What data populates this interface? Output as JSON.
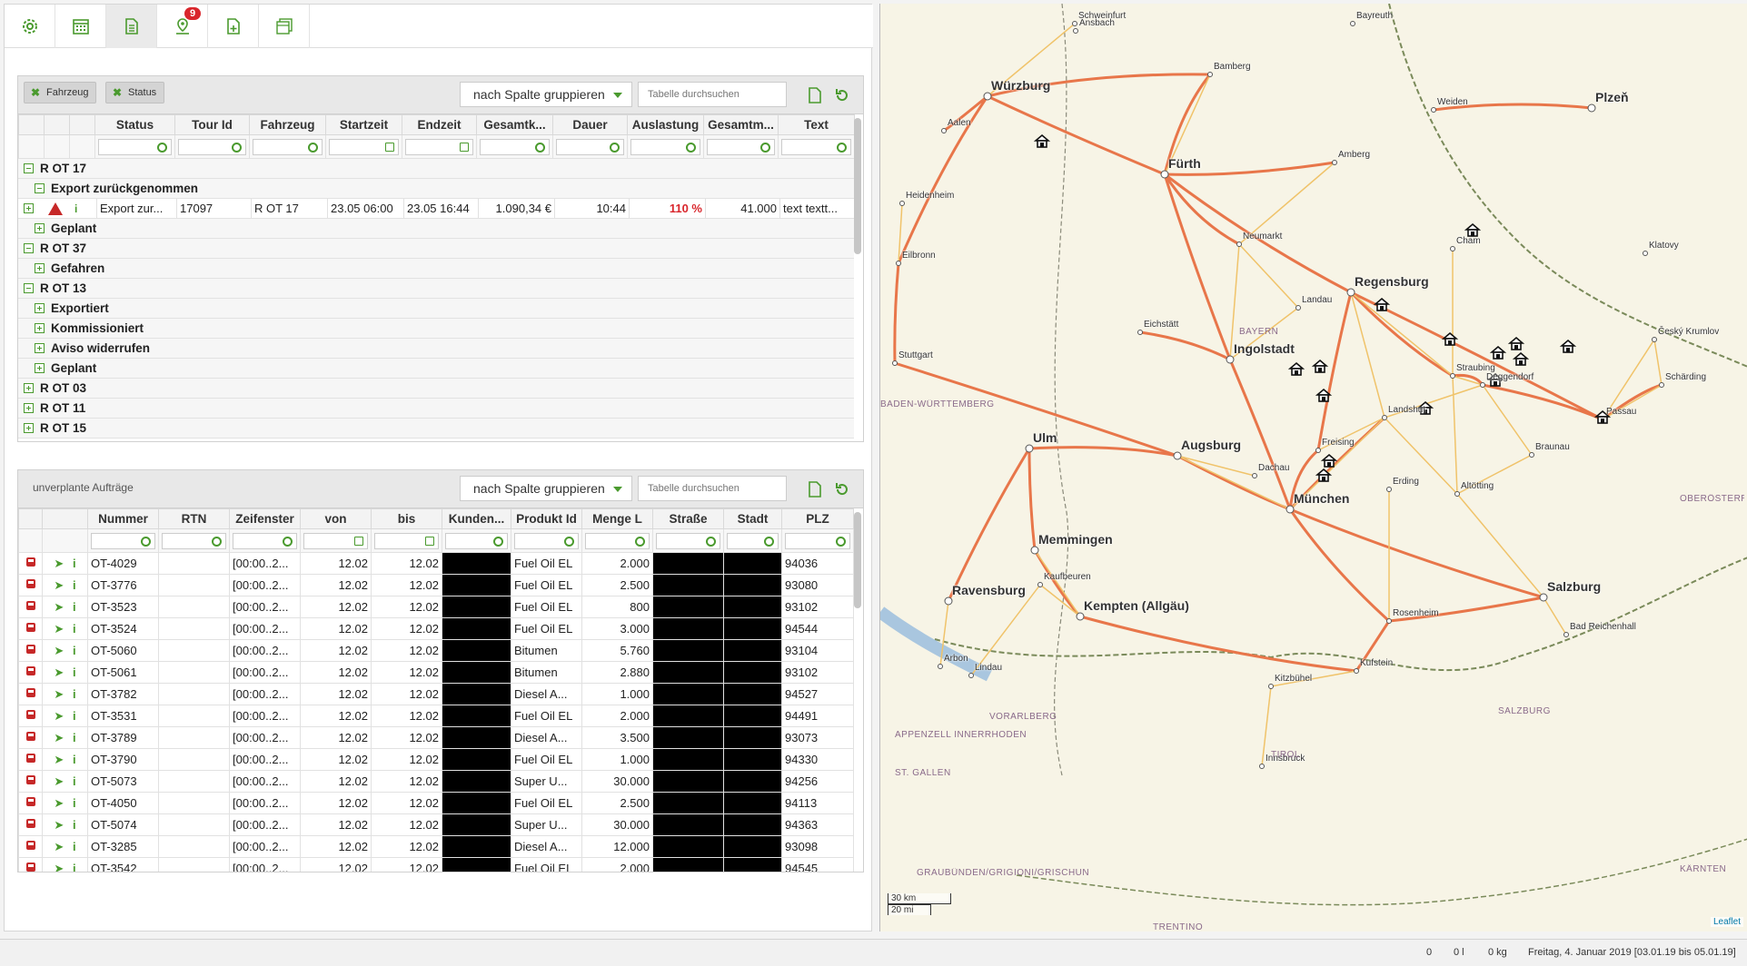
{
  "toolbar": {
    "buttons": [
      {
        "icon": "gear-icon"
      },
      {
        "icon": "calendar-icon"
      },
      {
        "icon": "document-icon"
      },
      {
        "icon": "map-pin-icon",
        "badge": "9"
      },
      {
        "icon": "document-add-icon"
      },
      {
        "icon": "layers-icon"
      }
    ]
  },
  "tours_panel": {
    "chips": [
      "Fahrzeug",
      "Status"
    ],
    "group_label": "nach Spalte gruppieren",
    "search_placeholder": "Tabelle durchsuchen",
    "columns": [
      "Status",
      "Tour Id",
      "Fahrzeug",
      "Startzeit",
      "Endzeit",
      "Gesamtk...",
      "Dauer",
      "Auslastung",
      "Gesamtm...",
      "Text"
    ],
    "groups": [
      {
        "level": 0,
        "label": "R OT 17",
        "expanded": true
      },
      {
        "level": 1,
        "label": "Export zurückgenommen",
        "expanded": true
      },
      {
        "level": 2,
        "row": {
          "status": "Export zur...",
          "tour_id": "17097",
          "fahrzeug": "R OT 17",
          "startzeit": "23.05 06:00",
          "endzeit": "23.05 16:44",
          "gesamtkosten": "1.090,34 €",
          "dauer": "10:44",
          "auslastung": "110 %",
          "gesamtmenge": "41.000",
          "text": "text textt..."
        }
      },
      {
        "level": 1,
        "label": "Geplant",
        "expanded": false
      },
      {
        "level": 0,
        "label": "R OT 37",
        "expanded": true
      },
      {
        "level": 1,
        "label": "Gefahren",
        "expanded": false
      },
      {
        "level": 0,
        "label": "R OT 13",
        "expanded": true
      },
      {
        "level": 1,
        "label": "Exportiert",
        "expanded": false
      },
      {
        "level": 1,
        "label": "Kommissioniert",
        "expanded": false
      },
      {
        "level": 1,
        "label": "Aviso widerrufen",
        "expanded": false
      },
      {
        "level": 1,
        "label": "Geplant",
        "expanded": false
      },
      {
        "level": 0,
        "label": "R OT 03",
        "expanded": false
      },
      {
        "level": 0,
        "label": "R OT 11",
        "expanded": false
      },
      {
        "level": 0,
        "label": "R OT 15",
        "expanded": false
      }
    ]
  },
  "orders_panel": {
    "title": "unverplante Aufträge",
    "group_label": "nach Spalte gruppieren",
    "search_placeholder": "Tabelle durchsuchen",
    "columns": [
      "Nummer",
      "RTN",
      "Zeifenster",
      "von",
      "bis",
      "Kunden...",
      "Produkt Id",
      "Menge L",
      "Straße",
      "Stadt",
      "PLZ"
    ],
    "rows": [
      {
        "nummer": "OT-4029",
        "zeit": "[00:00..2...",
        "von": "12.02",
        "bis": "12.02",
        "produkt": "Fuel Oil EL",
        "menge": "2.000",
        "plz": "94036"
      },
      {
        "nummer": "OT-3776",
        "zeit": "[00:00..2...",
        "von": "12.02",
        "bis": "12.02",
        "produkt": "Fuel Oil EL",
        "menge": "2.500",
        "plz": "93080"
      },
      {
        "nummer": "OT-3523",
        "zeit": "[00:00..2...",
        "von": "12.02",
        "bis": "12.02",
        "produkt": "Fuel Oil EL",
        "menge": "800",
        "plz": "93102"
      },
      {
        "nummer": "OT-3524",
        "zeit": "[00:00..2...",
        "von": "12.02",
        "bis": "12.02",
        "produkt": "Fuel Oil EL",
        "menge": "3.000",
        "plz": "94544"
      },
      {
        "nummer": "OT-5060",
        "zeit": "[00:00..2...",
        "von": "12.02",
        "bis": "12.02",
        "produkt": "Bitumen",
        "menge": "5.760",
        "plz": "93104"
      },
      {
        "nummer": "OT-5061",
        "zeit": "[00:00..2...",
        "von": "12.02",
        "bis": "12.02",
        "produkt": "Bitumen",
        "menge": "2.880",
        "plz": "93102"
      },
      {
        "nummer": "OT-3782",
        "zeit": "[00:00..2...",
        "von": "12.02",
        "bis": "12.02",
        "produkt": "Diesel A...",
        "menge": "1.000",
        "plz": "94527"
      },
      {
        "nummer": "OT-3531",
        "zeit": "[00:00..2...",
        "von": "12.02",
        "bis": "12.02",
        "produkt": "Fuel Oil EL",
        "menge": "2.000",
        "plz": "94491"
      },
      {
        "nummer": "OT-3789",
        "zeit": "[00:00..2...",
        "von": "12.02",
        "bis": "12.02",
        "produkt": "Diesel A...",
        "menge": "3.500",
        "plz": "93073"
      },
      {
        "nummer": "OT-3790",
        "zeit": "[00:00..2...",
        "von": "12.02",
        "bis": "12.02",
        "produkt": "Fuel Oil EL",
        "menge": "1.000",
        "plz": "94330"
      },
      {
        "nummer": "OT-5073",
        "zeit": "[00:00..2...",
        "von": "12.02",
        "bis": "12.02",
        "produkt": "Super U...",
        "menge": "30.000",
        "plz": "94256"
      },
      {
        "nummer": "OT-4050",
        "zeit": "[00:00..2...",
        "von": "12.02",
        "bis": "12.02",
        "produkt": "Fuel Oil EL",
        "menge": "2.500",
        "plz": "94113"
      },
      {
        "nummer": "OT-5074",
        "zeit": "[00:00..2...",
        "von": "12.02",
        "bis": "12.02",
        "produkt": "Super U...",
        "menge": "30.000",
        "plz": "94363"
      },
      {
        "nummer": "OT-3285",
        "zeit": "[00:00..2...",
        "von": "12.02",
        "bis": "12.02",
        "produkt": "Diesel A...",
        "menge": "12.000",
        "plz": "93098"
      },
      {
        "nummer": "OT-3542",
        "zeit": "[00:00..2...",
        "von": "12.02",
        "bis": "12.02",
        "produkt": "Fuel Oil EL",
        "menge": "2.000",
        "plz": "94545"
      }
    ]
  },
  "map": {
    "cities": [
      {
        "name": "Würzburg",
        "big": true
      },
      {
        "name": "Fürth",
        "big": true
      },
      {
        "name": "Regensburg",
        "big": true
      },
      {
        "name": "Ingolstadt",
        "big": true
      },
      {
        "name": "Augsburg",
        "big": true
      },
      {
        "name": "München",
        "big": true
      },
      {
        "name": "Ulm",
        "big": true
      },
      {
        "name": "Memmingen",
        "big": true
      },
      {
        "name": "Kempten (Allgäu)",
        "big": true
      },
      {
        "name": "Ravensburg",
        "big": true
      },
      {
        "name": "Salzburg",
        "big": true
      },
      {
        "name": "Plzeň",
        "big": true
      },
      {
        "name": "Passau",
        "big": false
      },
      {
        "name": "Landshut",
        "big": false
      },
      {
        "name": "Freising",
        "big": false
      },
      {
        "name": "Landau",
        "big": false
      },
      {
        "name": "Straubing",
        "big": false
      },
      {
        "name": "Deggendorf",
        "big": false
      },
      {
        "name": "Rosenheim",
        "big": false
      },
      {
        "name": "Kufstein",
        "big": false
      },
      {
        "name": "Lindau",
        "big": false
      },
      {
        "name": "Arbon",
        "big": false
      },
      {
        "name": "Innsbruck",
        "big": false
      },
      {
        "name": "Kitzbühel",
        "big": false
      },
      {
        "name": "Amberg",
        "big": false
      },
      {
        "name": "Weiden",
        "big": false
      },
      {
        "name": "Cham",
        "big": false
      },
      {
        "name": "Neumarkt",
        "big": false
      },
      {
        "name": "Eichstätt",
        "big": false
      },
      {
        "name": "Dachau",
        "big": false
      },
      {
        "name": "Erding",
        "big": false
      },
      {
        "name": "Kaufbeuren",
        "big": false
      },
      {
        "name": "Altötting",
        "big": false
      },
      {
        "name": "Schärding",
        "big": false
      },
      {
        "name": "Braunau",
        "big": false
      },
      {
        "name": "Bad Reichenhall",
        "big": false
      },
      {
        "name": "Eilbronn",
        "big": false
      },
      {
        "name": "Stuttgart",
        "big": false
      },
      {
        "name": "Aalen",
        "big": false
      },
      {
        "name": "Heidenheim",
        "big": false
      },
      {
        "name": "Ansbach",
        "big": false
      },
      {
        "name": "Bamberg",
        "big": false
      },
      {
        "name": "Schweinfurt",
        "big": false
      },
      {
        "name": "Bayreuth",
        "big": false
      },
      {
        "name": "Klatovy",
        "big": false
      },
      {
        "name": "Český Krumlov",
        "big": false
      }
    ],
    "regions": [
      "BAYERN",
      "BADEN-WÜRTTEMBERG",
      "OBERÖSTERREICH",
      "SALZBURG",
      "TIROL",
      "VORARLBERG",
      "ST. GALLEN",
      "KÄRNTEN",
      "GRAUBÜNDEN/GRIGIONI/GRISCHUN",
      "TRENTINO",
      "APPENZELL INNERRHODEN"
    ],
    "scale": [
      "30 km",
      "20 mi"
    ],
    "attribution": "Leaflet"
  },
  "statusbar": {
    "count": "0",
    "liters": "0 l",
    "kg": "0 kg",
    "date": "Freitag, 4. Januar 2019 [03.01.19 bis 05.01.19]"
  }
}
